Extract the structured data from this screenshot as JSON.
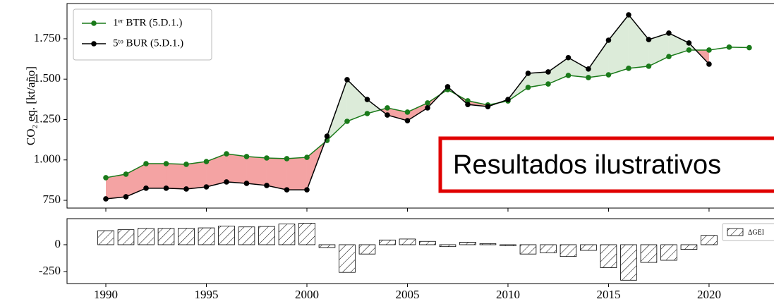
{
  "chart_data": [
    {
      "type": "line",
      "y_label": "CO₂ eq. [kt/año]",
      "annotation": "Resultados ilustrativos",
      "x": [
        1990,
        1991,
        1992,
        1993,
        1994,
        1995,
        1996,
        1997,
        1998,
        1999,
        2000,
        2001,
        2002,
        2003,
        2004,
        2005,
        2006,
        2007,
        2008,
        2009,
        2010,
        2011,
        2012,
        2013,
        2014,
        2015,
        2016,
        2017,
        2018,
        2019,
        2020,
        2021,
        2022
      ],
      "series": [
        {
          "name": "1ᵉʳ BTR (5.D.1.)",
          "color": "#1a7a1a",
          "values": [
            890,
            912,
            977,
            977,
            973,
            990,
            1038,
            1021,
            1012,
            1008,
            1016,
            1121,
            1239,
            1287,
            1322,
            1296,
            1353,
            1435,
            1366,
            1340,
            1365,
            1449,
            1470,
            1523,
            1510,
            1527,
            1567,
            1580,
            1640,
            1680,
            1680,
            1698,
            1695
          ]
        },
        {
          "name": "5ᵗᵒ BUR (5.D.1.)",
          "color": "#000000",
          "values": [
            759,
            772,
            825,
            825,
            820,
            833,
            864,
            855,
            842,
            815,
            815,
            1147,
            1497,
            1374,
            1278,
            1243,
            1322,
            1453,
            1343,
            1330,
            1374,
            1536,
            1545,
            1633,
            1563,
            1741,
            1898,
            1745,
            1785,
            1724,
            1593,
            null,
            null
          ]
        }
      ],
      "xlim": [
        1988.07,
        2023.23
      ],
      "ylim": [
        702,
        1968
      ],
      "yticks": [
        750,
        {
          "value": 1000,
          "label": "1.000"
        },
        {
          "value": 1250,
          "label": "1.250"
        },
        {
          "value": 1500,
          "label": "1.500"
        },
        {
          "value": 1750,
          "label": "1.750"
        }
      ],
      "legend": "upper left"
    },
    {
      "type": "bar",
      "x": [
        1990,
        1991,
        1992,
        1993,
        1994,
        1995,
        1996,
        1997,
        1998,
        1999,
        2000,
        2001,
        2002,
        2003,
        2004,
        2005,
        2006,
        2007,
        2008,
        2009,
        2010,
        2011,
        2012,
        2013,
        2014,
        2015,
        2016,
        2017,
        2018,
        2019,
        2020
      ],
      "series": [
        {
          "name": "ΔGEI",
          "color": "#000000",
          "values": [
            131,
            140,
            152,
            152,
            153,
            157,
            174,
            166,
            170,
            193,
            201,
            -26,
            -258,
            -87,
            44,
            53,
            31,
            -18,
            23,
            10,
            -9,
            -87,
            -75,
            -110,
            -53,
            -214,
            -331,
            -165,
            -145,
            -44,
            87
          ]
        }
      ],
      "xlim": [
        1988.07,
        2023.23
      ],
      "ylim": [
        -362,
        243
      ],
      "yticks": [
        -250,
        0
      ],
      "xticks": [
        1990,
        1995,
        2000,
        2005,
        2010,
        2015,
        2020
      ],
      "legend": "upper right"
    }
  ]
}
